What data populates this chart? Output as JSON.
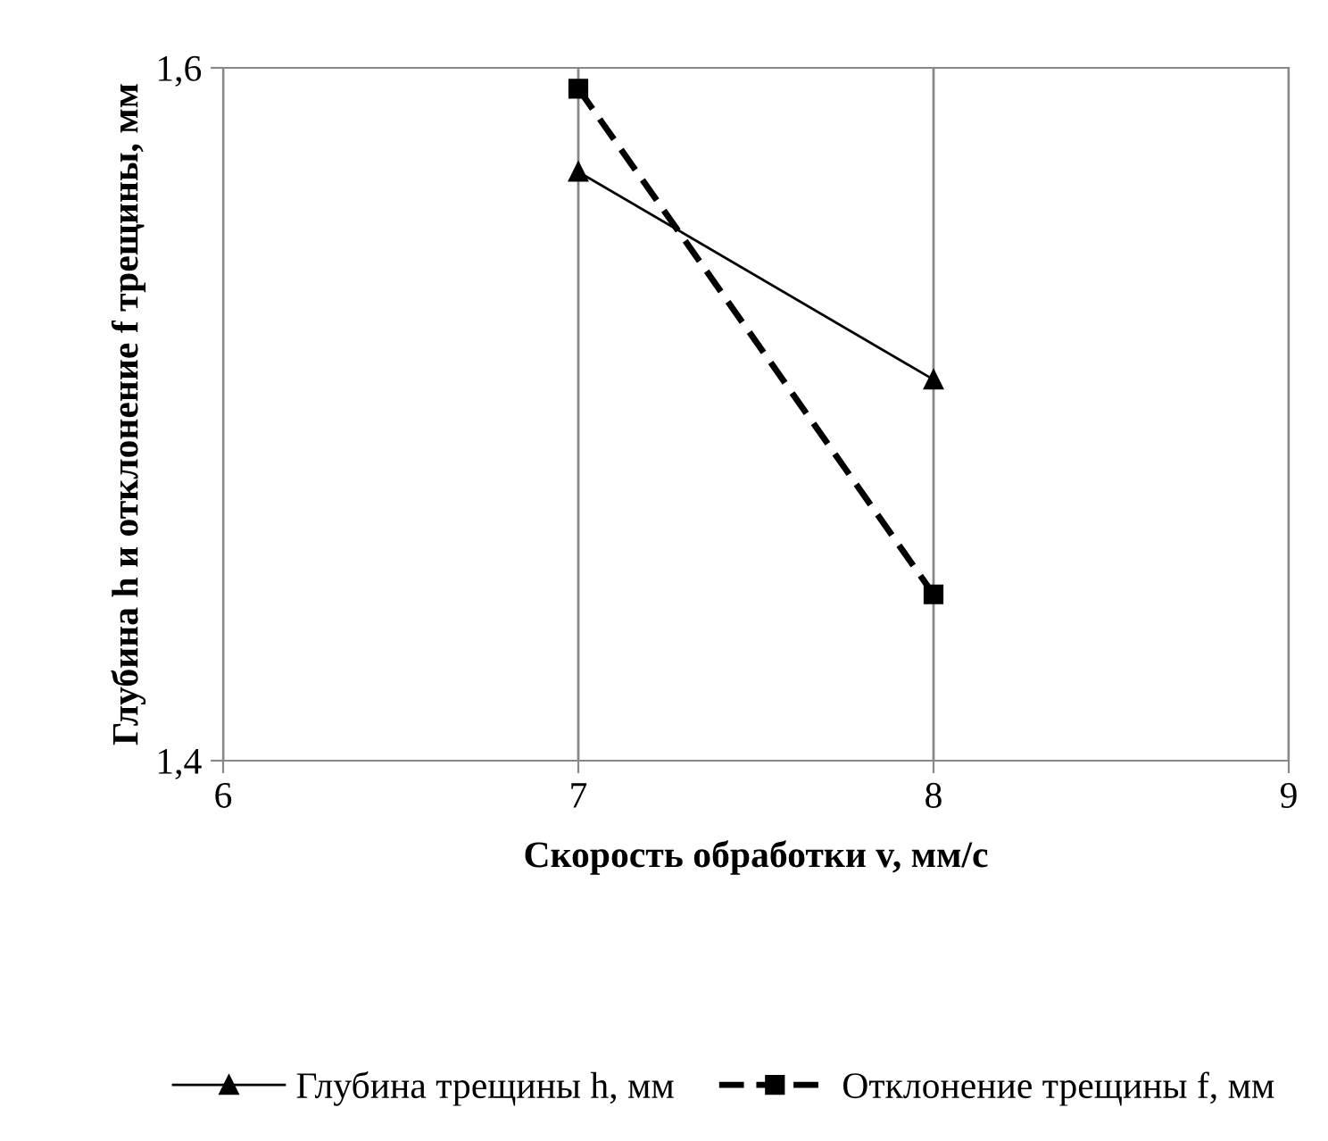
{
  "chart_data": {
    "type": "line",
    "xlabel": "Скорость обработки v, мм/с",
    "ylabel": "Глубина h и отклонение f трещины, мм",
    "xlim": [
      6,
      9
    ],
    "xticks": [
      6,
      7,
      8,
      9
    ],
    "ylim": [
      1.4,
      1.6
    ],
    "yticks": [
      {
        "value": 1.4,
        "label": "1,4"
      },
      {
        "value": 1.6,
        "label": "1,6"
      }
    ],
    "grid": "x",
    "legend": "bottom",
    "x": [
      7,
      8
    ],
    "series": [
      {
        "name": "Глубина трещины h, мм",
        "color": "#000000",
        "values": [
          1.57,
          1.51
        ],
        "marker": "triangle",
        "line_style": "solid"
      },
      {
        "name": "Отклонение трещины f, мм",
        "color": "#000000",
        "values": [
          1.594,
          1.448
        ],
        "marker": "square",
        "line_style": "dashed"
      }
    ]
  }
}
